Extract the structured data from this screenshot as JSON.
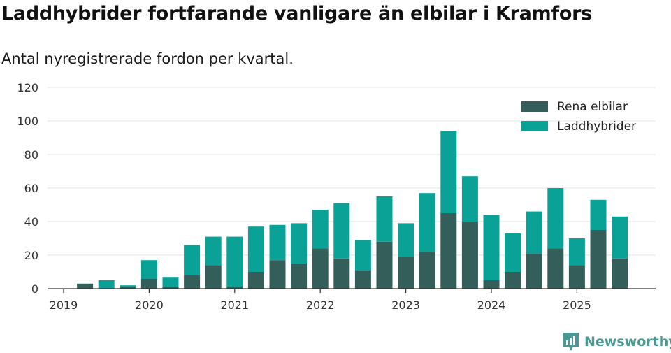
{
  "header": {
    "title": "Laddhybrider fortfarande vanligare än elbilar i Kramfors",
    "subtitle": "Antal nyregistrerade fordon per kvartal."
  },
  "brand": {
    "name": "Newsworthy",
    "icon": "newsworthy-logo-icon"
  },
  "colors": {
    "elbilar": "#335e5a",
    "laddhybrider": "#0aa197",
    "grid": "#e3e3e3",
    "axis": "#333333"
  },
  "chart_data": {
    "type": "bar",
    "stacked": true,
    "title": "Laddhybrider fortfarande vanligare än elbilar i Kramfors",
    "subtitle": "Antal nyregistrerade fordon per kvartal.",
    "xlabel": "",
    "ylabel": "",
    "ylim": [
      0,
      120
    ],
    "yticks": [
      0,
      20,
      40,
      60,
      80,
      100,
      120
    ],
    "xticks": [
      "2019",
      "2020",
      "2021",
      "2022",
      "2023",
      "2024",
      "2025"
    ],
    "legend_position": "top-right",
    "categories": [
      "2019 Q1",
      "2019 Q2",
      "2019 Q3",
      "2019 Q4",
      "2020 Q1",
      "2020 Q2",
      "2020 Q3",
      "2020 Q4",
      "2021 Q1",
      "2021 Q2",
      "2021 Q3",
      "2021 Q4",
      "2022 Q1",
      "2022 Q2",
      "2022 Q3",
      "2022 Q4",
      "2023 Q1",
      "2023 Q2",
      "2023 Q3",
      "2023 Q4",
      "2024 Q1",
      "2024 Q2",
      "2024 Q3",
      "2024 Q4",
      "2025 Q1",
      "2025 Q2",
      "2025 Q3"
    ],
    "series": [
      {
        "name": "Rena elbilar",
        "values": [
          0,
          3,
          0,
          1,
          6,
          1,
          8,
          14,
          1,
          10,
          17,
          15,
          24,
          18,
          11,
          28,
          19,
          22,
          45,
          40,
          5,
          10,
          21,
          24,
          14,
          35,
          18
        ]
      },
      {
        "name": "Laddhybrider",
        "values": [
          0,
          0,
          5,
          1,
          11,
          6,
          18,
          17,
          30,
          27,
          21,
          24,
          23,
          33,
          18,
          27,
          20,
          35,
          49,
          27,
          39,
          23,
          25,
          36,
          16,
          18,
          25
        ]
      }
    ]
  }
}
